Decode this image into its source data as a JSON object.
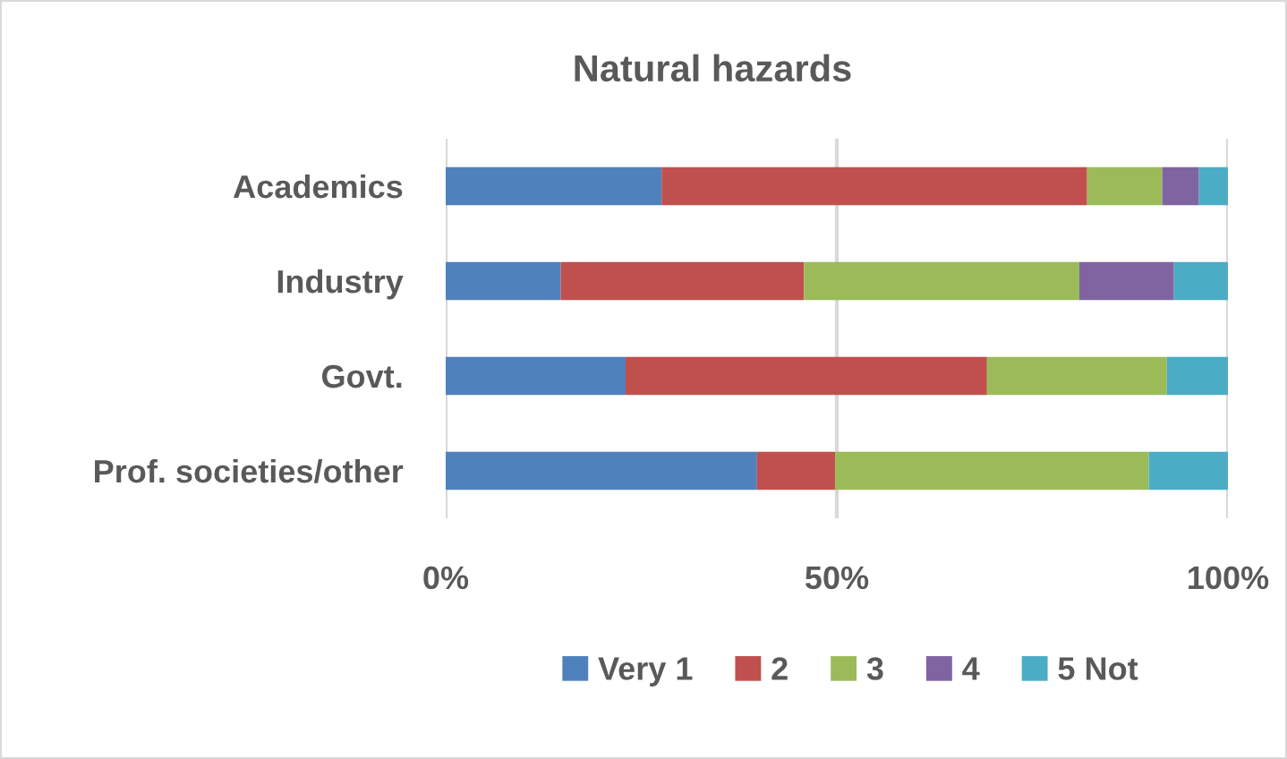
{
  "chart_data": {
    "type": "bar",
    "orientation": "horizontal",
    "stacked": true,
    "title": "Natural hazards",
    "categories": [
      "Academics",
      "Industry",
      "Govt.",
      "Prof. societies/other"
    ],
    "series": [
      {
        "name": "Very 1",
        "color": "#4f81bd",
        "values": [
          27.6,
          14.7,
          23.0,
          39.8
        ]
      },
      {
        "name": "2",
        "color": "#c0504d",
        "values": [
          54.4,
          31.1,
          46.2,
          10.0
        ]
      },
      {
        "name": "3",
        "color": "#9bbb59",
        "values": [
          9.6,
          35.2,
          23.0,
          40.1
        ]
      },
      {
        "name": "4",
        "color": "#8064a2",
        "values": [
          4.7,
          12.1,
          null,
          null
        ]
      },
      {
        "name": "5 Not",
        "color": "#4bacc6",
        "values": [
          3.7,
          6.9,
          7.8,
          10.1
        ]
      }
    ],
    "xlim": [
      0,
      100
    ],
    "xticks": [
      {
        "value": 0,
        "label": "0%"
      },
      {
        "value": 50,
        "label": "50%"
      },
      {
        "value": 100,
        "label": "100%"
      }
    ],
    "grid": "x",
    "legend": "bottom"
  }
}
